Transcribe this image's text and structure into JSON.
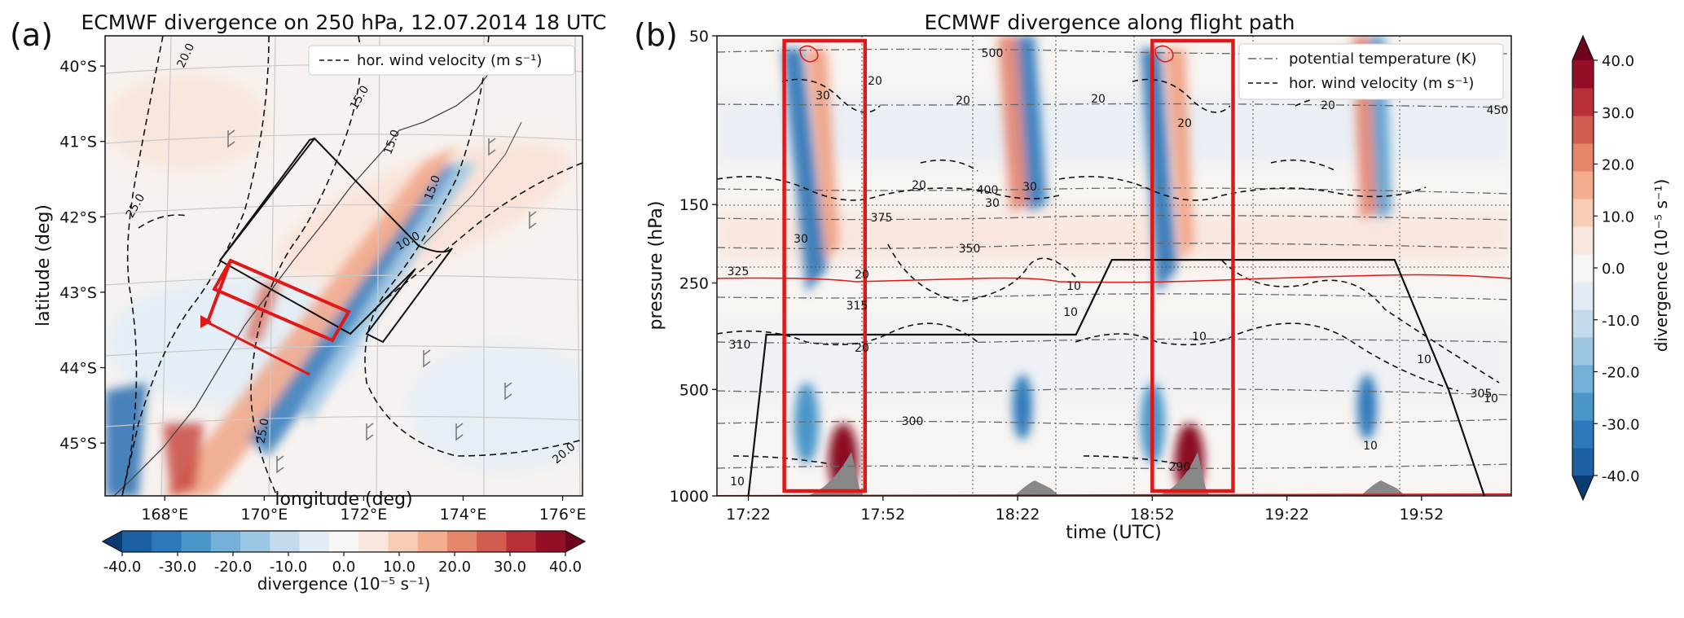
{
  "panel_a": {
    "letter": "(a)",
    "title": "ECMWF divergence on 250 hPa, 12.07.2014 18 UTC",
    "xlabel": "longitude (deg)",
    "ylabel": "latitude (deg)",
    "legend": "hor. wind velocity (m s⁻¹)"
  },
  "panel_b": {
    "letter": "(b)",
    "title": "ECMWF divergence along flight path",
    "xlabel": "time (UTC)",
    "ylabel": "pressure (hPa)",
    "legend_theta": "potential temperature (K)",
    "legend_wind": "hor. wind velocity (m s⁻¹)"
  },
  "colorbar": {
    "label": "divergence (10⁻⁵ s⁻¹)",
    "ticks": [
      "-40.0",
      "-30.0",
      "-20.0",
      "-10.0",
      "0.0",
      "10.0",
      "20.0",
      "30.0",
      "40.0"
    ],
    "colors": [
      "#0a3a72",
      "#1d5fa3",
      "#2d79bb",
      "#4a96c9",
      "#74b0d8",
      "#9cc7e3",
      "#c3dbed",
      "#e1ecf5",
      "#f5f5f5",
      "#f9e6dc",
      "#f7cdb6",
      "#f2ae8d",
      "#e5866a",
      "#d05d4f",
      "#b82f3a",
      "#930f26",
      "#6f0420"
    ]
  },
  "chart_data": [
    {
      "type": "heatmap",
      "title": "ECMWF divergence on 250 hPa, 12.07.2014 18 UTC",
      "xlabel": "longitude (deg)",
      "ylabel": "latitude (deg)",
      "x_ticks": [
        "168°E",
        "170°E",
        "172°E",
        "174°E",
        "176°E"
      ],
      "y_ticks": [
        "40°S",
        "41°S",
        "42°S",
        "43°S",
        "44°S",
        "45°S"
      ],
      "xlim": [
        166.8,
        176.4
      ],
      "ylim": [
        -45.7,
        -39.6
      ],
      "wind_contour_labels": [
        "20.0",
        "15.0",
        "25.0",
        "15.0",
        "10.0",
        "15.0",
        "25.0",
        "20.0"
      ],
      "legend": [
        "hor. wind velocity (m s⁻¹)"
      ],
      "legend_position": "top-right",
      "colorbar_range": [
        -40,
        40
      ]
    },
    {
      "type": "heatmap",
      "title": "ECMWF divergence along flight path",
      "xlabel": "time (UTC)",
      "ylabel": "pressure (hPa)",
      "x_ticks": [
        "17:22",
        "17:52",
        "18:22",
        "18:52",
        "19:22",
        "19:52"
      ],
      "y_ticks": [
        "50",
        "150",
        "250",
        "500",
        "1000"
      ],
      "ylim": [
        1000,
        50
      ],
      "y_scale": "log",
      "theta_contour_labels": [
        "500",
        "450",
        "400",
        "375",
        "350",
        "325",
        "315",
        "310",
        "305",
        "300",
        "290"
      ],
      "wind_contour_labels": [
        "30",
        "20",
        "30",
        "30",
        "20",
        "20",
        "30",
        "20",
        "20",
        "20",
        "20",
        "10",
        "20",
        "10",
        "10",
        "10",
        "10",
        "10",
        "10"
      ],
      "legend": [
        "potential temperature (K)",
        "hor. wind velocity (m s⁻¹)"
      ],
      "legend_position": "top-right",
      "colorbar_range": [
        -40,
        40
      ],
      "flight_pressure": {
        "t": [
          "17:22",
          "17:26",
          "17:52",
          "18:35",
          "18:37",
          "18:43",
          "19:46",
          "19:58",
          "20:06"
        ],
        "hPa": [
          1000,
          350,
          350,
          350,
          310,
          215,
          215,
          500,
          1000
        ]
      },
      "highlight_windows": [
        [
          "17:30",
          "17:48"
        ],
        [
          "18:52",
          "19:10"
        ]
      ]
    }
  ]
}
